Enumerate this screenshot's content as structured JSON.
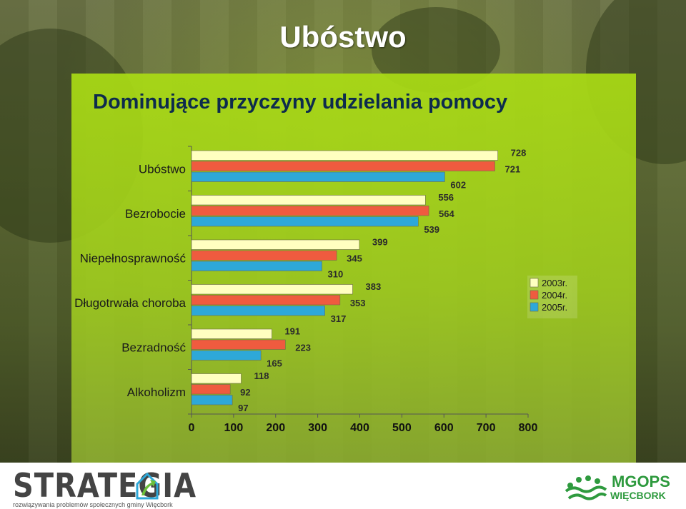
{
  "slide_title": "Ubóstwo",
  "footer": {
    "left_logo_word": "STRATEGIA",
    "left_logo_sub": "rozwiązywania problemów społecznych gminy Więcbork",
    "right_logo_name": "MGOPS",
    "right_logo_city": "WIĘCBORK"
  },
  "colors": {
    "series_2003": "#ffffc0",
    "series_2004": "#ef5b3f",
    "series_2005": "#2ea8d8",
    "title": "#0d2b4d"
  },
  "chart_data": {
    "type": "bar",
    "orientation": "horizontal",
    "title": "Dominujące przyczyny udzielania pomocy",
    "categories": [
      "Ubóstwo",
      "Bezrobocie",
      "Niepełnosprawność",
      "Długotrwała choroba",
      "Bezradność",
      "Alkoholizm"
    ],
    "series": [
      {
        "name": "2003r.",
        "values": [
          728,
          556,
          399,
          383,
          191,
          118
        ]
      },
      {
        "name": "2004r.",
        "values": [
          721,
          564,
          345,
          353,
          223,
          92
        ]
      },
      {
        "name": "2005r.",
        "values": [
          602,
          539,
          310,
          317,
          165,
          97
        ]
      }
    ],
    "xlim": [
      0,
      800
    ],
    "xticks": [
      0,
      100,
      200,
      300,
      400,
      500,
      600,
      700,
      800
    ],
    "grid": false,
    "legend": "right"
  }
}
